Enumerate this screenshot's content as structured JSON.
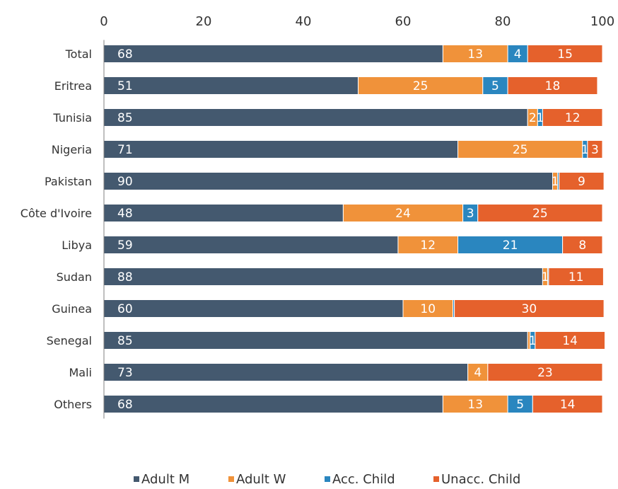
{
  "chart_data": {
    "type": "bar",
    "orientation": "horizontal",
    "stacked": true,
    "x_axis_position": "top",
    "xlim": [
      0,
      100
    ],
    "x_ticks": [
      0,
      20,
      40,
      60,
      80,
      100
    ],
    "grid": false,
    "legend_position": "bottom",
    "categories": [
      "Total",
      "Eritrea",
      "Tunisia",
      "Nigeria",
      "Pakistan",
      "Côte d'Ivoire",
      "Libya",
      "Sudan",
      "Guinea",
      "Senegal",
      "Mali",
      "Others"
    ],
    "series": [
      {
        "name": "Adult M",
        "color": "#44596f",
        "values": [
          68,
          51,
          85,
          71,
          90,
          48,
          59,
          88,
          60,
          85,
          73,
          68
        ]
      },
      {
        "name": "Adult W",
        "color": "#f0923a",
        "values": [
          13,
          25,
          2,
          25,
          1,
          24,
          12,
          1,
          10,
          0.5,
          4,
          13
        ]
      },
      {
        "name": "Acc. Child",
        "color": "#2a86bf",
        "values": [
          4,
          5,
          1,
          1,
          0.3,
          3,
          21,
          0.2,
          0.3,
          1,
          0,
          5
        ]
      },
      {
        "name": "Unacc. Child",
        "color": "#e5612c",
        "values": [
          15,
          18,
          12,
          3,
          9,
          25,
          8,
          11,
          30,
          14,
          23,
          14
        ]
      }
    ],
    "labels": [
      [
        "68",
        "13",
        "4",
        "15"
      ],
      [
        "51",
        "25",
        "5",
        "18"
      ],
      [
        "85",
        "2",
        "1",
        "12"
      ],
      [
        "71",
        "25",
        "1",
        "3"
      ],
      [
        "90",
        "1",
        "",
        "9"
      ],
      [
        "48",
        "24",
        "3",
        "25"
      ],
      [
        "59",
        "12",
        "21",
        "8"
      ],
      [
        "88",
        "1",
        "",
        "11"
      ],
      [
        "60",
        "10",
        "",
        "30"
      ],
      [
        "85",
        "",
        "1",
        "14"
      ],
      [
        "73",
        "4",
        "",
        "23"
      ],
      [
        "68",
        "13",
        "5",
        "14"
      ]
    ]
  }
}
